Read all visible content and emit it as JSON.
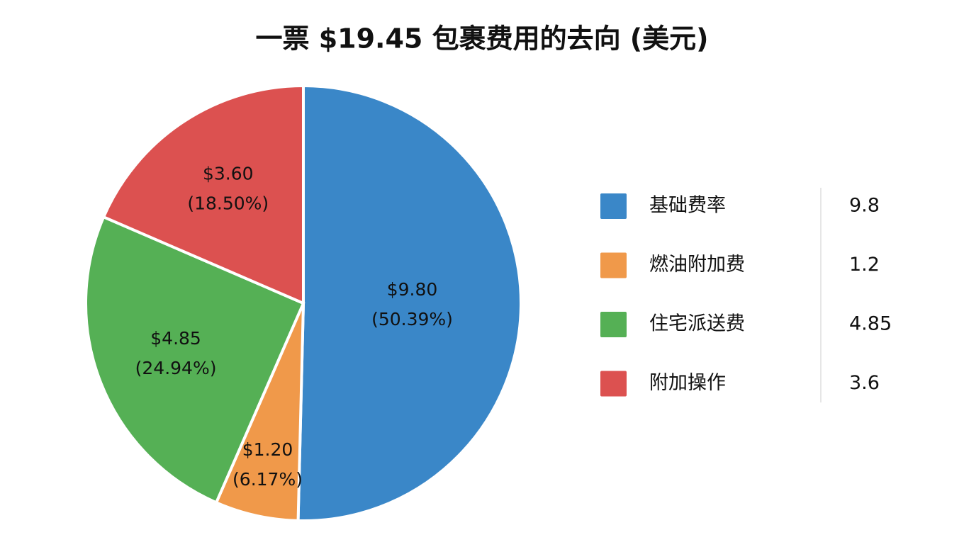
{
  "chart_data": {
    "type": "pie",
    "title": "一票 $19.45 包裹费用的去向 (美元)",
    "categories": [
      "基础费率",
      "燃油附加费",
      "住宅派送费",
      "附加操作"
    ],
    "values": [
      9.8,
      1.2,
      4.85,
      3.6
    ],
    "value_labels": [
      "$9.80",
      "$1.20",
      "$4.85",
      "$3.60"
    ],
    "percent_labels": [
      "(50.39%)",
      "(6.17%)",
      "(24.94%)",
      "(18.50%)"
    ],
    "colors": [
      "#3a87c8",
      "#f0994a",
      "#55b055",
      "#dc5150"
    ],
    "legend": "right"
  }
}
